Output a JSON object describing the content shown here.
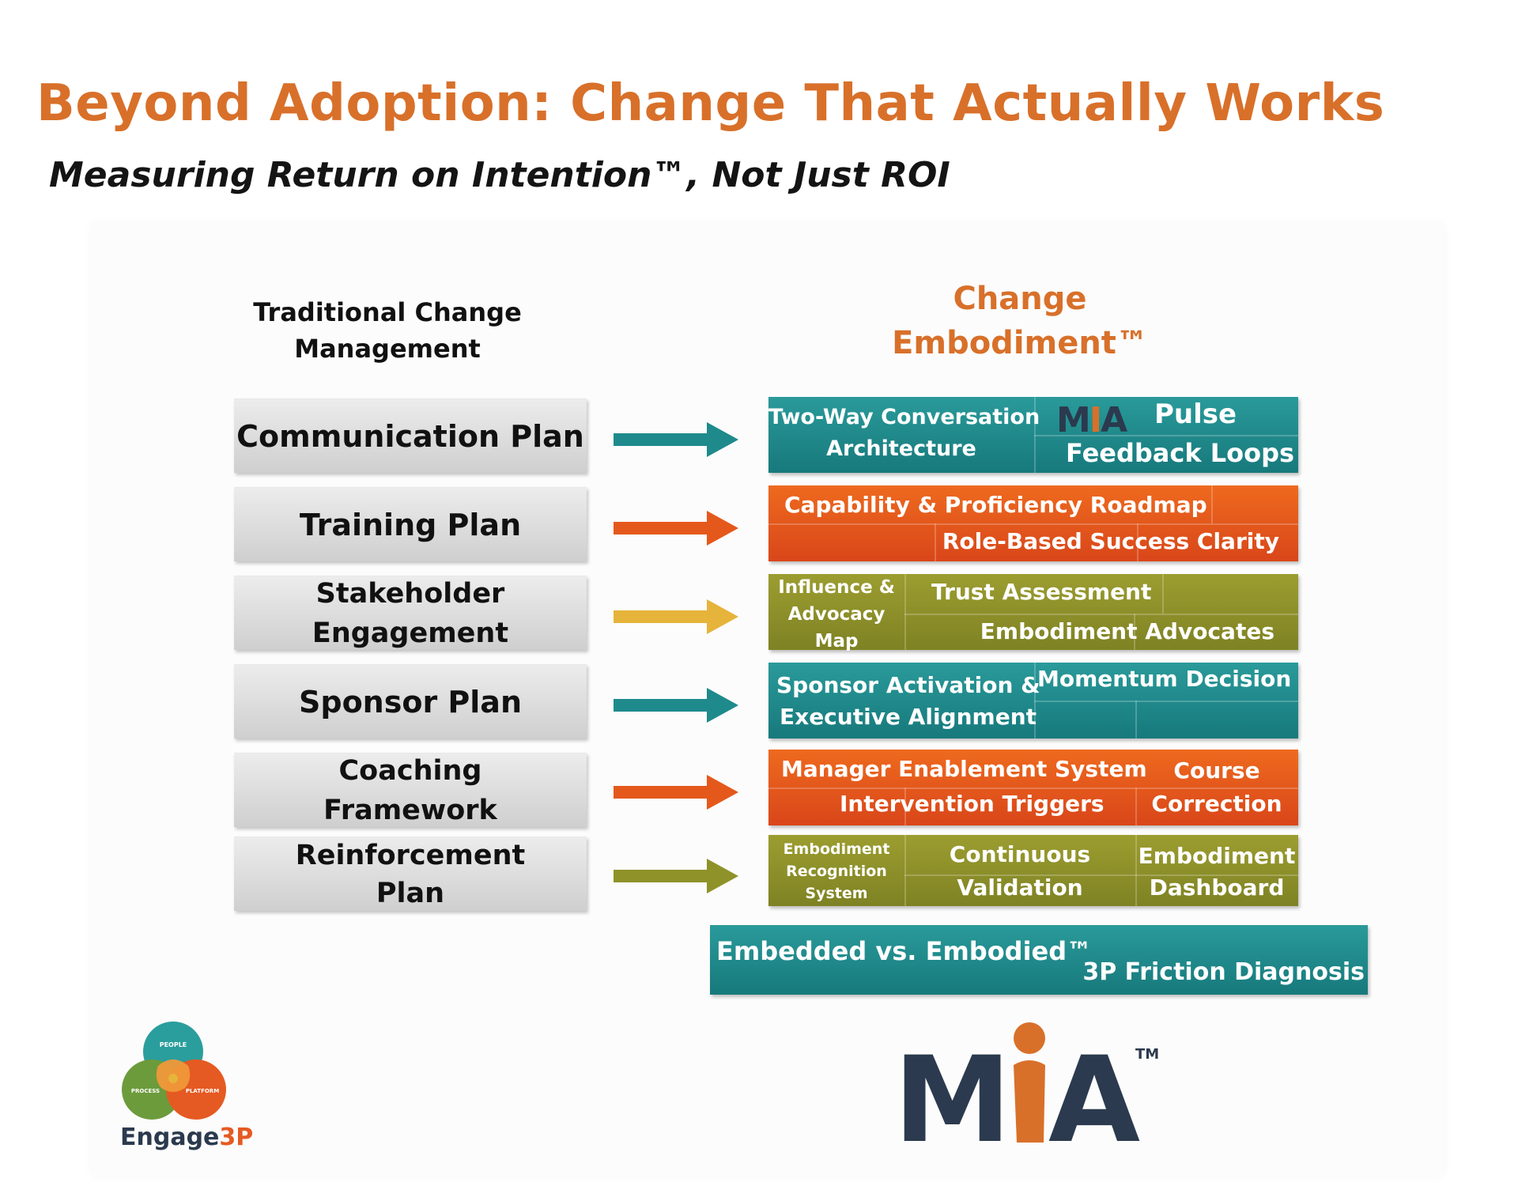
{
  "header": {
    "title": "Beyond Adoption: Change That Actually Works",
    "subtitle": "Measuring Return on Intention™, Not Just ROI"
  },
  "columns": {
    "left_heading": "Traditional Change\nManagement",
    "right_heading": "Change\nEmbodiment™"
  },
  "traditional": [
    "Communication Plan",
    "Training Plan",
    "Stakeholder\nEngagement",
    "Sponsor Plan",
    "Coaching\nFramework",
    "Reinforcement\nPlan"
  ],
  "embodiment": {
    "row1": {
      "a": "Two-Way Conversation",
      "b": "Architecture",
      "mia": "MIA",
      "c": "Pulse",
      "d": "Feedback Loops"
    },
    "row2": {
      "a": "Capability & Proficiency Roadmap",
      "b": "Role-Based Success Clarity"
    },
    "row3": {
      "a": "Influence &\nAdvocacy\nMap",
      "b": "Trust Assessment",
      "c": "Embodiment Advocates"
    },
    "row4": {
      "a": "Sponsor Activation &",
      "b": "Executive Alignment",
      "c": "Momentum Decision"
    },
    "row5": {
      "a": "Manager Enablement System",
      "b": "Intervention Triggers",
      "c": "Course",
      "d": "Correction"
    },
    "row6": {
      "a": "Embodiment\nRecognition\nSystem",
      "b": "Continuous",
      "c": "Validation",
      "d": "Embodiment",
      "e": "Dashboard"
    }
  },
  "bottom_bar": {
    "left": "Embedded vs. Embodied™",
    "right": "3P Friction Diagnosis"
  },
  "logos": {
    "engage3p": {
      "people": "PEOPLE",
      "process": "PROCESS",
      "platform": "PLATFORM",
      "name_a": "Engage",
      "name_b": "3P"
    },
    "mia": {
      "m": "M",
      "a": "A",
      "tm": "TM"
    }
  },
  "colors": {
    "title": "#D8702A",
    "teal": "#1E8A8C",
    "orange": "#E5581C",
    "amber": "#E6B43A",
    "olive": "#8F9229",
    "mia_dark": "#2B3A4E"
  }
}
